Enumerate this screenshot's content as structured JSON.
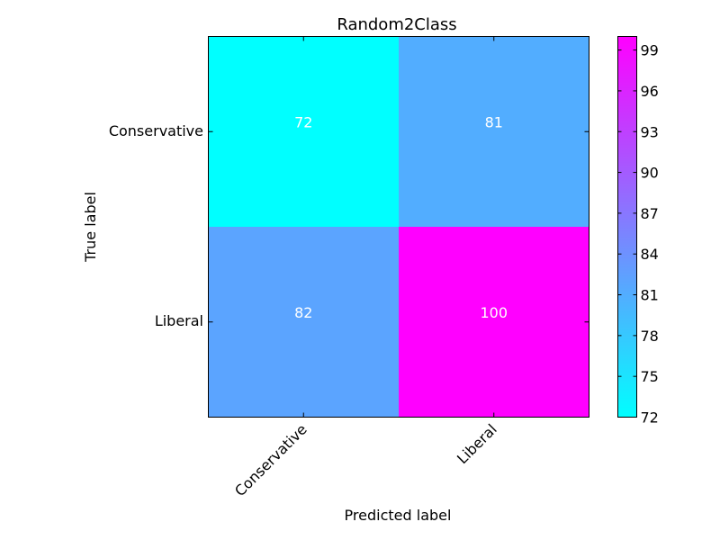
{
  "chart_data": {
    "type": "heatmap",
    "title": "Random2Class",
    "xlabel": "Predicted label",
    "ylabel": "True label",
    "x_categories": [
      "Conservative",
      "Liberal"
    ],
    "y_categories": [
      "Conservative",
      "Liberal"
    ],
    "values": [
      [
        72,
        81
      ],
      [
        82,
        100
      ]
    ],
    "colormap": "cool",
    "colormap_start": "#00ffff",
    "colormap_end": "#ff00ff",
    "cell_text_color": "#ffffff",
    "colorbar": {
      "range": [
        72,
        100
      ],
      "ticks": [
        "72",
        "75",
        "78",
        "81",
        "84",
        "87",
        "90",
        "93",
        "96",
        "99"
      ]
    }
  }
}
